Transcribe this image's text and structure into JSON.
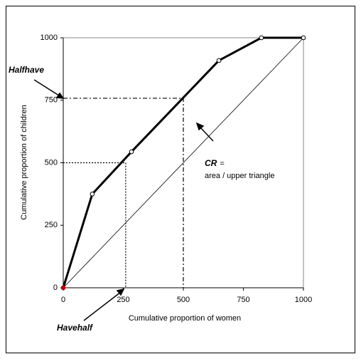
{
  "chart_data": {
    "type": "line",
    "x_label": "Cumulative proportion of women",
    "y_label": "Cumulative proportion of children",
    "x": [
      0,
      121,
      284,
      648,
      825,
      1000
    ],
    "values": [
      0,
      375,
      544,
      909,
      1000,
      1000
    ],
    "color": "#000000",
    "xlim": [
      0,
      1000
    ],
    "ylim": [
      0,
      1000
    ],
    "xticks": [
      0,
      250,
      500,
      750,
      1000
    ],
    "yticks": [
      0,
      250,
      500,
      750,
      1000
    ],
    "grid": false,
    "guides": [
      {
        "x": 260,
        "y": 500,
        "style": "dotted"
      },
      {
        "x": 500,
        "y": 758,
        "style": "dashdot"
      }
    ],
    "annotations": {
      "halfhave": "Halfhave",
      "havehalf": "Havehalf",
      "cr": "CR",
      "cr_eq": "=",
      "cr_text": "area / upper triangle"
    }
  }
}
